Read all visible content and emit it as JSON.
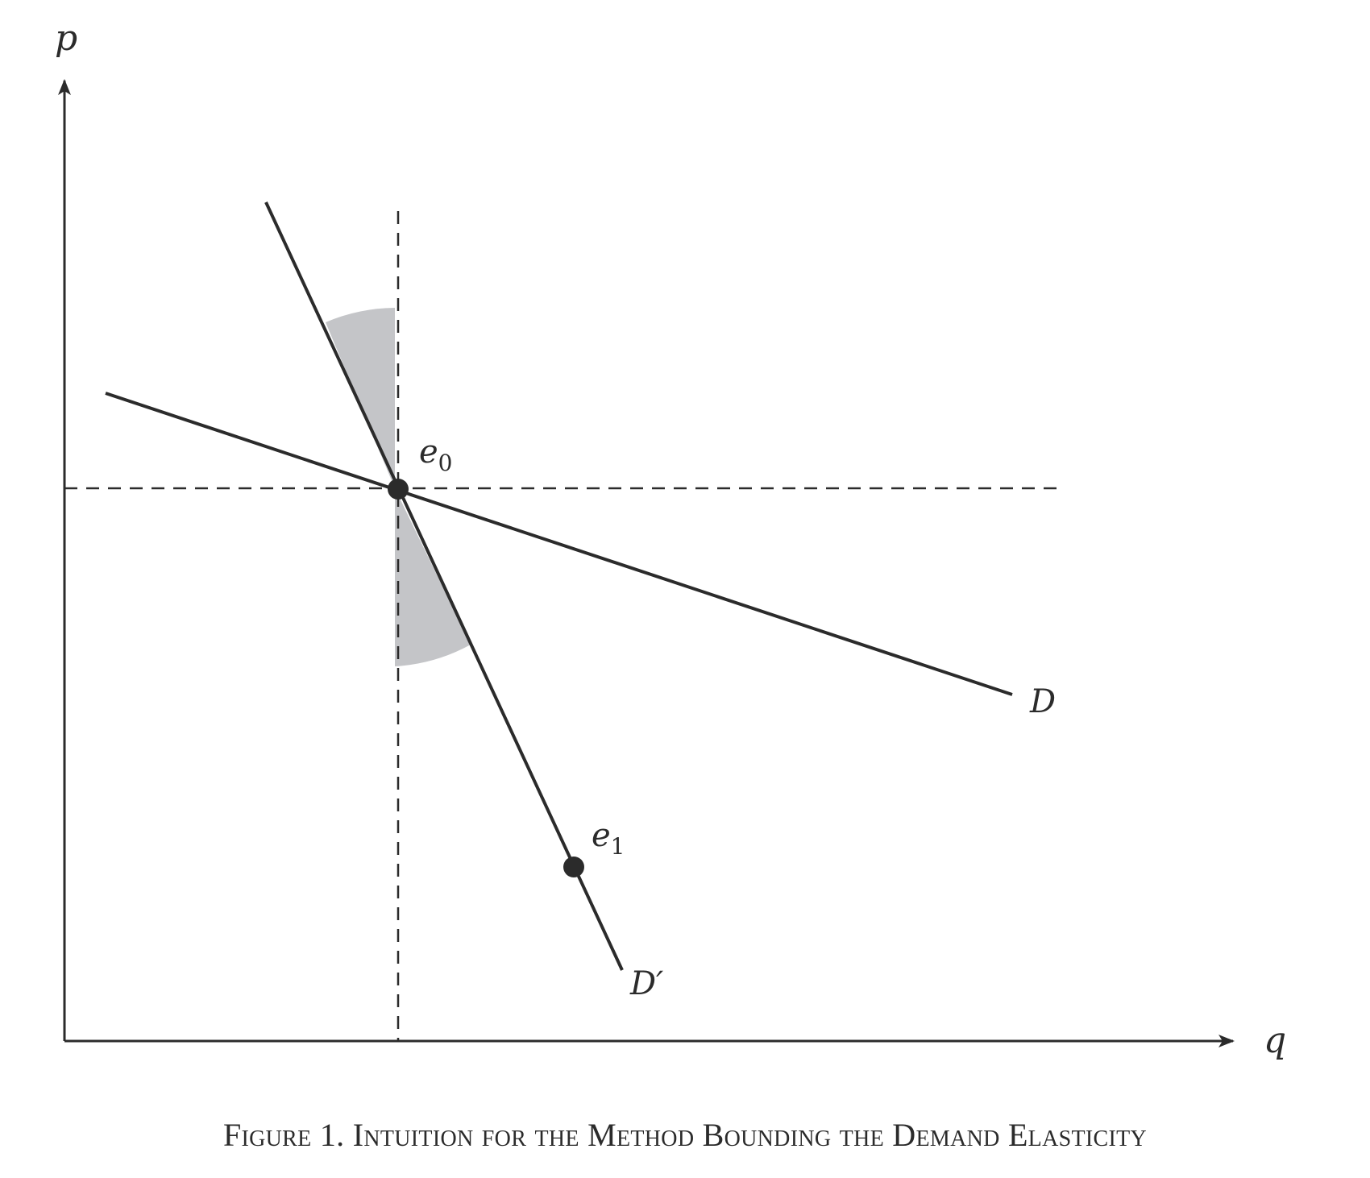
{
  "axes": {
    "y_label": "p",
    "x_label": "q"
  },
  "curves": {
    "elastic_label": "D",
    "inelastic_label": "D′"
  },
  "points": {
    "e0": {
      "base": "e",
      "sub": "0"
    },
    "e1": {
      "base": "e",
      "sub": "1"
    }
  },
  "colors": {
    "ink": "#2b2b2b",
    "shade": "#c4c5c8"
  },
  "caption": "Figure 1. Intuition for the Method Bounding the Demand Elasticity"
}
